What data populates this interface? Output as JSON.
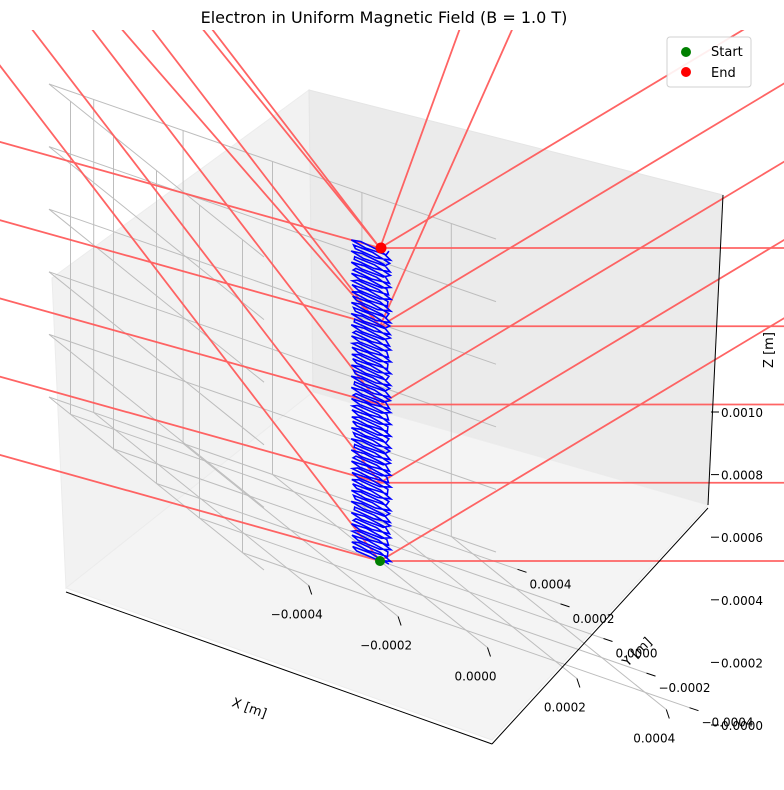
{
  "chart_data": {
    "type": "line3d",
    "title": "Electron in Uniform Magnetic Field (B = 1.0 T)",
    "xlabel": "X [m]",
    "ylabel": "Y [m]",
    "zlabel": "Z [m]",
    "xlim": [
      -0.0005,
      0.0005
    ],
    "ylim": [
      -0.0005,
      0.0005
    ],
    "zlim": [
      0.0,
      0.001
    ],
    "x_ticks": [
      "−0.0004",
      "−0.0002",
      "0.0000",
      "0.0002",
      "0.0004"
    ],
    "y_ticks": [
      "−0.0004",
      "−0.0002",
      "0.0000",
      "0.0002",
      "0.0004"
    ],
    "z_ticks": [
      "0.0000",
      "0.0002",
      "0.0004",
      "0.0006",
      "0.0008",
      "0.0010"
    ],
    "grid": true,
    "legend_position": "top-right",
    "legend": [
      {
        "label": "Start",
        "color": "#008000"
      },
      {
        "label": "End",
        "color": "#ff0000"
      }
    ],
    "trajectory": {
      "color": "#0000ff",
      "radius_m": 4e-05,
      "z_start": 0.0,
      "z_end": 0.001,
      "segments": 300,
      "turns": 55
    },
    "field_lines_color": "#ff5c5c",
    "start_point": {
      "x": 0.0,
      "y": 0.0,
      "z": 0.0
    },
    "end_point": {
      "x": 0.0,
      "y": 0.0,
      "z": 0.001
    }
  }
}
